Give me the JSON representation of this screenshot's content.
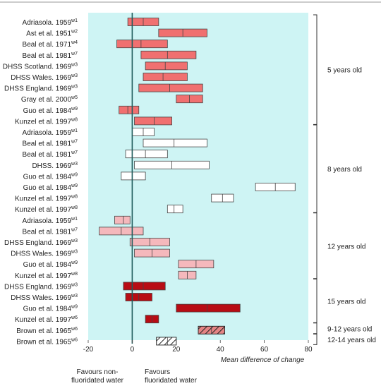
{
  "chart_data": {
    "type": "forest",
    "xlim": [
      -20,
      80
    ],
    "xticks": [
      -20,
      0,
      20,
      40,
      60,
      80
    ],
    "xlabel": "Mean difference of change",
    "plot_background": "#cef4f4",
    "footnotes": {
      "left": [
        "Favours non-",
        "fluoridated water"
      ],
      "right": [
        "Favours",
        "fluoridated water"
      ]
    },
    "colors": {
      "5y": "#f07070",
      "8y": "#ffffff",
      "12y": "#f5b8bc",
      "15y": "#b80c14",
      "brown_9_12": "#e48484",
      "brown_12_14": "#ffffff"
    },
    "rows": [
      {
        "study": "Adriasola. 1959",
        "sup": "w1",
        "group": "5y",
        "low": -2,
        "mean": 5,
        "high": 12
      },
      {
        "study": "Ast et al. 1951",
        "sup": "w2",
        "group": "5y",
        "low": 12,
        "mean": 23,
        "high": 34
      },
      {
        "study": "Beal et al. 1971",
        "sup": "w4",
        "group": "5y",
        "low": -7,
        "mean": 4,
        "high": 16
      },
      {
        "study": "Beal et al. 1981",
        "sup": "w7",
        "group": "5y",
        "low": 4,
        "mean": 16,
        "high": 29
      },
      {
        "study": "DHSS Scotland. 1969",
        "sup": "w3",
        "group": "5y",
        "low": 6,
        "mean": 15,
        "high": 25
      },
      {
        "study": "DHSS Wales. 1969",
        "sup": "w3",
        "group": "5y",
        "low": 5,
        "mean": 14,
        "high": 25
      },
      {
        "study": "DHSS England. 1969",
        "sup": "w3",
        "group": "5y",
        "low": 3,
        "mean": 17,
        "high": 32
      },
      {
        "study": "Gray et al. 2000",
        "sup": "w5",
        "group": "5y",
        "low": 20,
        "mean": 26,
        "high": 32
      },
      {
        "study": "Guo et al. 1984",
        "sup": "w9",
        "group": "5y",
        "low": -6,
        "mean": -2,
        "high": 3
      },
      {
        "study": "Kunzel et al. 1997",
        "sup": "w8",
        "group": "5y",
        "low": 1,
        "mean": 10,
        "high": 18
      },
      {
        "study": "Adriasola. 1959",
        "sup": "w1",
        "group": "8y",
        "low": 0,
        "mean": 5,
        "high": 10
      },
      {
        "study": "Beal et al. 1981",
        "sup": "w7",
        "group": "8y",
        "low": 5,
        "mean": 19,
        "high": 34
      },
      {
        "study": "Beal et al. 1981",
        "sup": "w7",
        "group": "8y",
        "low": -3,
        "mean": 6,
        "high": 16
      },
      {
        "study": "DHSS. 1969",
        "sup": "w3",
        "group": "8y",
        "low": 1,
        "mean": 18,
        "high": 35
      },
      {
        "study": "Guo et al. 1984",
        "sup": "w9",
        "group": "8y",
        "low": -5,
        "mean": 0,
        "high": 6
      },
      {
        "study": "Guo et al. 1984",
        "sup": "w9",
        "group": "8y",
        "low": 56,
        "mean": 65,
        "high": 74
      },
      {
        "study": "Kunzel et al. 1997",
        "sup": "w8",
        "group": "8y",
        "low": 36,
        "mean": 41,
        "high": 46
      },
      {
        "study": "Kunzel et al. 1997",
        "sup": "w8",
        "group": "8y",
        "low": 16,
        "mean": 19,
        "high": 23
      },
      {
        "study": "Adriasola. 1959",
        "sup": "w1",
        "group": "12y",
        "low": -8,
        "mean": -4,
        "high": -1
      },
      {
        "study": "Beal et al. 1981",
        "sup": "w7",
        "group": "12y",
        "low": -15,
        "mean": -5,
        "high": 5
      },
      {
        "study": "DHSS England. 1969",
        "sup": "w3",
        "group": "12y",
        "low": -1,
        "mean": 8,
        "high": 17
      },
      {
        "study": "DHSS Wales. 1969",
        "sup": "w3",
        "group": "12y",
        "low": 1,
        "mean": 9,
        "high": 17
      },
      {
        "study": "Guo et al. 1984",
        "sup": "w9",
        "group": "12y",
        "low": 21,
        "mean": 29,
        "high": 37
      },
      {
        "study": "Kunzel et al. 1997",
        "sup": "w8",
        "group": "12y",
        "low": 21,
        "mean": 25,
        "high": 29
      },
      {
        "study": "DHSS England. 1969",
        "sup": "w3",
        "group": "15y",
        "low": -4,
        "mean": 5,
        "high": 15
      },
      {
        "study": "DHSS Wales. 1969",
        "sup": "w3",
        "group": "15y",
        "low": -3,
        "mean": 3,
        "high": 9
      },
      {
        "study": "Guo et al. 1984",
        "sup": "w9",
        "group": "15y",
        "low": 20,
        "mean": 34,
        "high": 49
      },
      {
        "study": "Kunzel et al. 1997",
        "sup": "w6",
        "group": "15y",
        "low": 6,
        "mean": 9,
        "high": 12
      },
      {
        "study": "Brown et al. 1965",
        "sup": "w6",
        "group": "brown_9_12",
        "low": 30,
        "mean": 36,
        "high": 42,
        "hatched": true
      },
      {
        "study": "Brown et al. 1965",
        "sup": "w6",
        "group": "brown_12_14",
        "low": 11,
        "mean": 16,
        "high": 20,
        "hatched": true
      }
    ],
    "groups": [
      {
        "label": "5 years old",
        "first": 0,
        "last": 9
      },
      {
        "label": "8 years old",
        "first": 10,
        "last": 17
      },
      {
        "label": "12 years old",
        "first": 18,
        "last": 23
      },
      {
        "label": "15 years old",
        "first": 24,
        "last": 27
      },
      {
        "label": "9-12 years old",
        "first": 28,
        "last": 28
      },
      {
        "label": "12-14 years old",
        "first": 29,
        "last": 29
      }
    ]
  }
}
